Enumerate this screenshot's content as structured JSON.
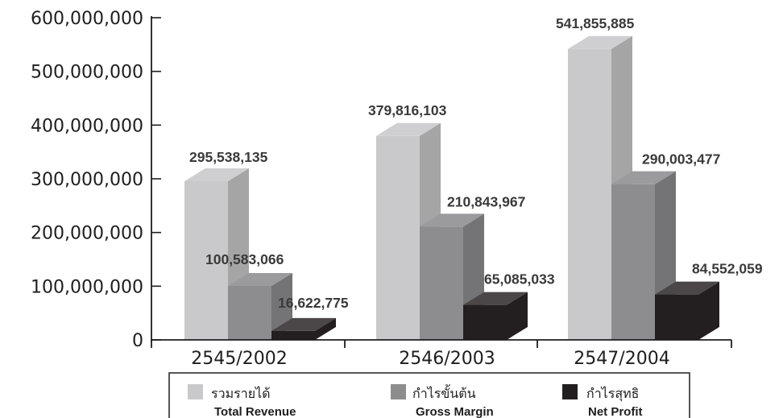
{
  "chart_data": {
    "type": "bar",
    "title": "",
    "xlabel": "",
    "ylabel": "",
    "ylim": [
      0,
      600000000
    ],
    "yticks": [
      "0",
      "100,000,000",
      "200,000,000",
      "300,000,000",
      "400,000,000",
      "500,000,000",
      "600,000,000"
    ],
    "categories": [
      "2545/2002",
      "2546/2003",
      "2547/2004"
    ],
    "three_d": true,
    "grid": false,
    "legend_position": "bottom",
    "series": [
      {
        "name_th": "รวมรายได้",
        "name": "Total Revenue",
        "color": "#c9c9cb",
        "values": [
          295538135,
          379816103,
          541855885
        ],
        "labels": [
          "295,538,135",
          "379,816,103",
          "541,855,885"
        ]
      },
      {
        "name_th": "กำไรขั้นต้น",
        "name": "Gross Margin",
        "color": "#8d8d90",
        "values": [
          100583066,
          210843967,
          290003477
        ],
        "labels": [
          "100,583,066",
          "210,843,967",
          "290,003,477"
        ]
      },
      {
        "name_th": "กำไรสุทธิ",
        "name": "Net Profit",
        "color": "#231f20",
        "values": [
          16622775,
          65085033,
          84552059
        ],
        "labels": [
          "16,622,775",
          "65,085,033",
          "84,552,059"
        ]
      }
    ]
  }
}
